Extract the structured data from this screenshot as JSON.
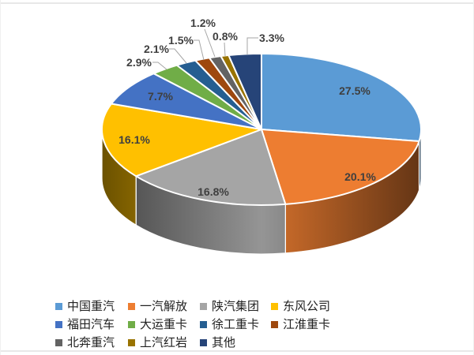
{
  "page": {
    "background": "#ffffff",
    "frame_border_color": "#e8e8e8"
  },
  "chart_data": {
    "type": "pie",
    "style": "3d-pie",
    "title": "",
    "legend_position": "bottom",
    "direction": "clockwise",
    "start_angle_deg": 0,
    "categories": [
      "中国重汽",
      "一汽解放",
      "陕汽集团",
      "东风公司",
      "福田汽车",
      "大运重卡",
      "徐工重卡",
      "江淮重卡",
      "北奔重汽",
      "上汽红岩",
      "其他"
    ],
    "values": [
      27.5,
      20.1,
      16.8,
      16.1,
      7.7,
      2.9,
      2.1,
      1.5,
      1.2,
      0.8,
      3.3
    ],
    "data_labels": [
      "27.5%",
      "20.1%",
      "16.8%",
      "16.1%",
      "7.7%",
      "2.9%",
      "2.1%",
      "1.5%",
      "1.2%",
      "0.8%",
      "3.3%"
    ],
    "colors": [
      "#5B9BD5",
      "#ED7D31",
      "#A5A5A5",
      "#FFC000",
      "#4472C4",
      "#70AD47",
      "#255E91",
      "#9E480E",
      "#636363",
      "#997300",
      "#264478"
    ],
    "label_color": "#3f3f3f",
    "leader_line_color": "#A6A6A6"
  },
  "legend": {
    "items": [
      {
        "label": "中国重汽",
        "color": "#5B9BD5"
      },
      {
        "label": "一汽解放",
        "color": "#ED7D31"
      },
      {
        "label": "陕汽集团",
        "color": "#A5A5A5"
      },
      {
        "label": "东风公司",
        "color": "#FFC000"
      },
      {
        "label": "福田汽车",
        "color": "#4472C4"
      },
      {
        "label": "大运重卡",
        "color": "#70AD47"
      },
      {
        "label": "徐工重卡",
        "color": "#255E91"
      },
      {
        "label": "江淮重卡",
        "color": "#9E480E"
      },
      {
        "label": "北奔重汽",
        "color": "#636363"
      },
      {
        "label": "上汽红岩",
        "color": "#997300"
      },
      {
        "label": "其他",
        "color": "#264478"
      }
    ]
  }
}
